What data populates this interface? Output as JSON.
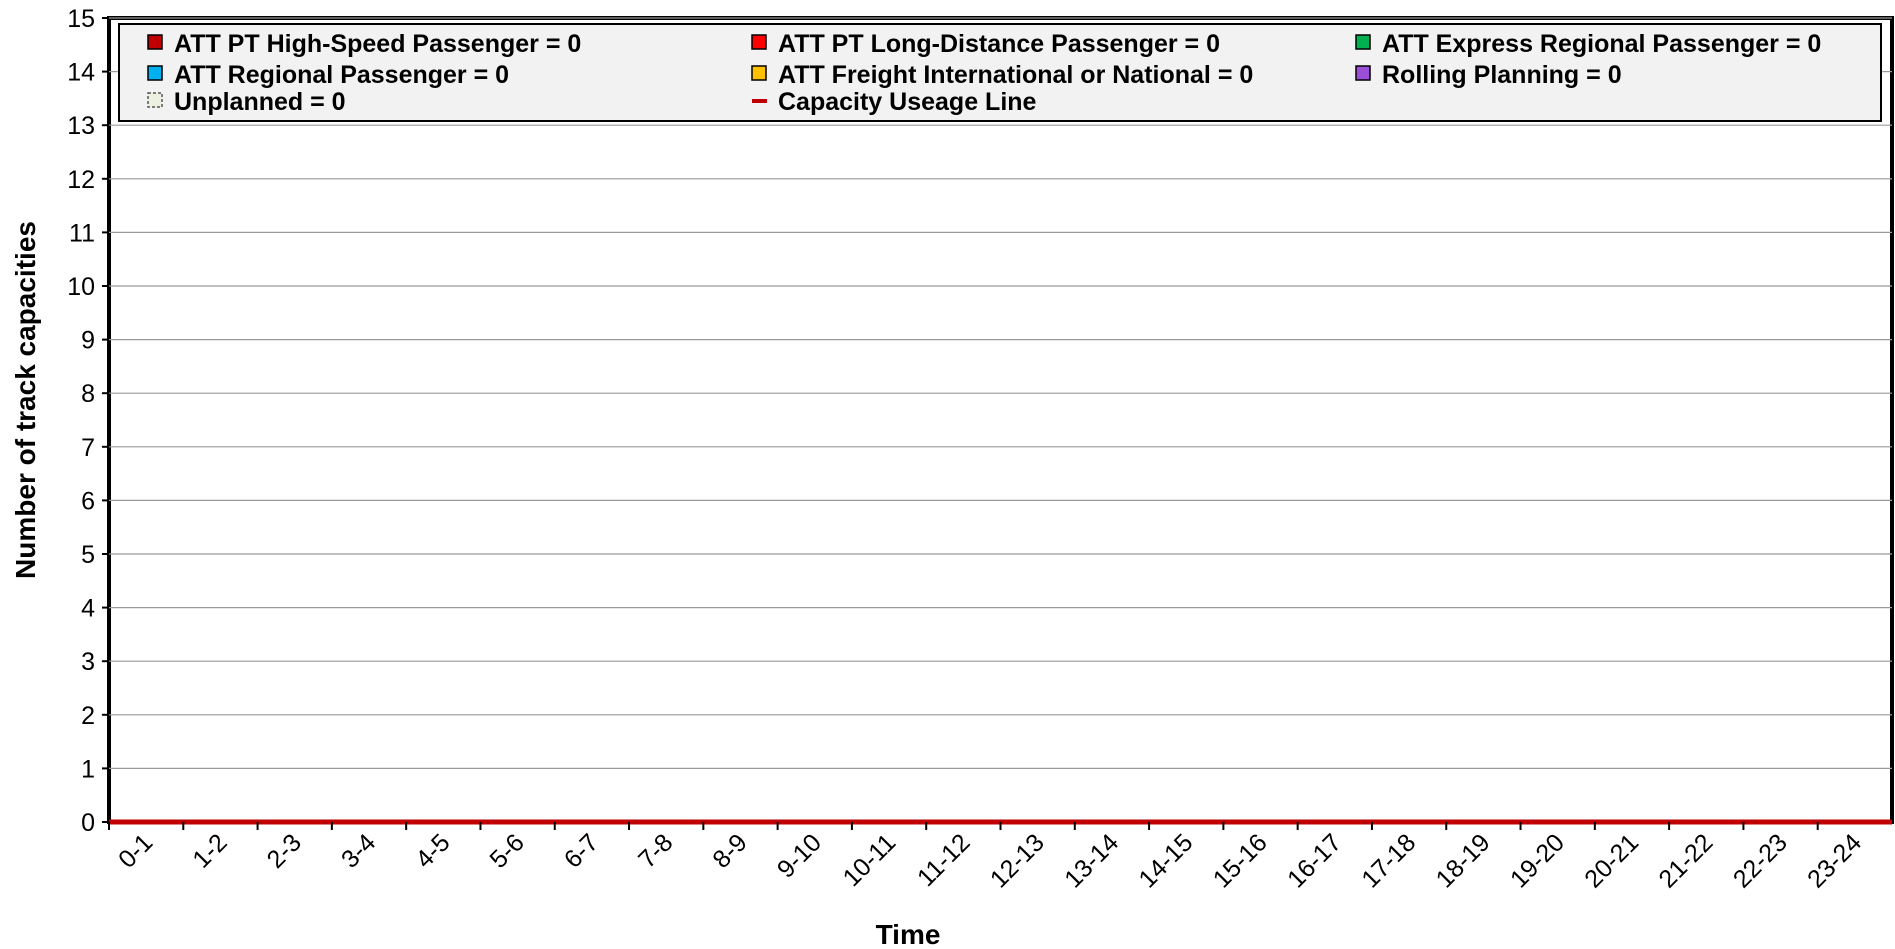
{
  "chart_data": {
    "type": "bar",
    "stacked": true,
    "xlabel": "Time",
    "ylabel": "Number of track capacities",
    "ylim": [
      0,
      15
    ],
    "yticks": [
      0,
      1,
      2,
      3,
      4,
      5,
      6,
      7,
      8,
      9,
      10,
      11,
      12,
      13,
      14,
      15
    ],
    "grid": true,
    "legend_position": "top",
    "categories": [
      "0-1",
      "1-2",
      "2-3",
      "3-4",
      "4-5",
      "5-6",
      "6-7",
      "7-8",
      "8-9",
      "9-10",
      "10-11",
      "11-12",
      "12-13",
      "13-14",
      "14-15",
      "15-16",
      "16-17",
      "17-18",
      "18-19",
      "19-20",
      "20-21",
      "21-22",
      "22-23",
      "23-24"
    ],
    "series": [
      {
        "name": "ATT PT High-Speed Passenger = 0",
        "color": "#c00000",
        "values": [
          0,
          0,
          0,
          0,
          0,
          0,
          0,
          0,
          0,
          0,
          0,
          0,
          0,
          0,
          0,
          0,
          0,
          0,
          0,
          0,
          0,
          0,
          0,
          0
        ]
      },
      {
        "name": "ATT PT Long-Distance Passenger = 0",
        "color": "#ff0000",
        "values": [
          0,
          0,
          0,
          0,
          0,
          0,
          0,
          0,
          0,
          0,
          0,
          0,
          0,
          0,
          0,
          0,
          0,
          0,
          0,
          0,
          0,
          0,
          0,
          0
        ]
      },
      {
        "name": "ATT Express Regional Passenger = 0",
        "color": "#00b050",
        "values": [
          0,
          0,
          0,
          0,
          0,
          0,
          0,
          0,
          0,
          0,
          0,
          0,
          0,
          0,
          0,
          0,
          0,
          0,
          0,
          0,
          0,
          0,
          0,
          0
        ]
      },
      {
        "name": "ATT Regional Passenger = 0",
        "color": "#00b0f0",
        "values": [
          0,
          0,
          0,
          0,
          0,
          0,
          0,
          0,
          0,
          0,
          0,
          0,
          0,
          0,
          0,
          0,
          0,
          0,
          0,
          0,
          0,
          0,
          0,
          0
        ]
      },
      {
        "name": "ATT Freight International or National = 0",
        "color": "#ffc000",
        "values": [
          0,
          0,
          0,
          0,
          0,
          0,
          0,
          0,
          0,
          0,
          0,
          0,
          0,
          0,
          0,
          0,
          0,
          0,
          0,
          0,
          0,
          0,
          0,
          0
        ]
      },
      {
        "name": "Rolling Planning = 0",
        "color": "#9b4fd6",
        "values": [
          0,
          0,
          0,
          0,
          0,
          0,
          0,
          0,
          0,
          0,
          0,
          0,
          0,
          0,
          0,
          0,
          0,
          0,
          0,
          0,
          0,
          0,
          0,
          0
        ]
      },
      {
        "name": "Unplanned = 0",
        "color": "#ebf1de",
        "dashed": true,
        "values": [
          0,
          0,
          0,
          0,
          0,
          0,
          0,
          0,
          0,
          0,
          0,
          0,
          0,
          0,
          0,
          0,
          0,
          0,
          0,
          0,
          0,
          0,
          0,
          0
        ]
      }
    ],
    "line_series": [
      {
        "name": "Capacity Useage Line",
        "color": "#c00000",
        "values": [
          0,
          0,
          0,
          0,
          0,
          0,
          0,
          0,
          0,
          0,
          0,
          0,
          0,
          0,
          0,
          0,
          0,
          0,
          0,
          0,
          0,
          0,
          0,
          0
        ]
      }
    ]
  }
}
